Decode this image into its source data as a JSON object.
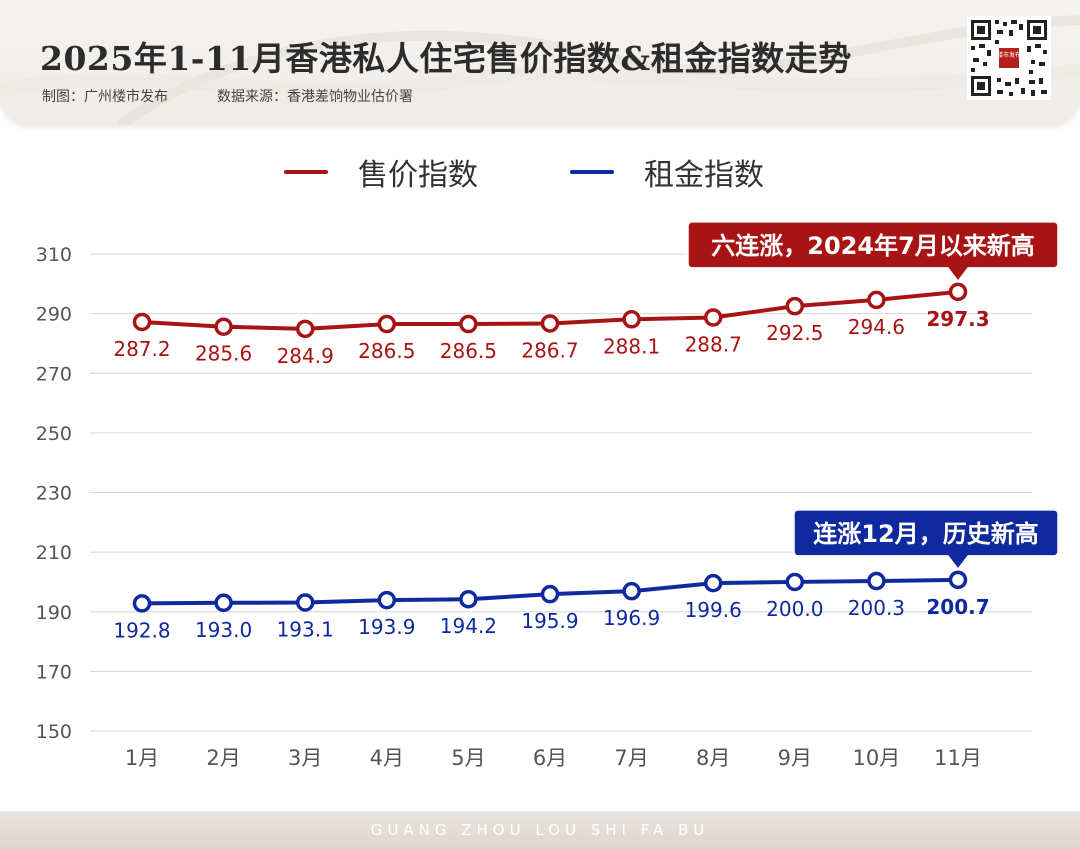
{
  "header": {
    "title": "2025年1-11月香港私人住宅售价指数&租金指数走势",
    "credit_maker": "制图：广州楼市发布",
    "credit_source": "数据来源：香港差饷物业估价署",
    "qr_badge": "楼市发布"
  },
  "footer": {
    "text": "GUANG ZHOU LOU SHI FA BU"
  },
  "colors": {
    "sale": "#a81414",
    "rent": "#0f2a9e",
    "grid": "#d6d6d6",
    "axis_text": "#555555"
  },
  "chart_data": {
    "type": "line",
    "categories": [
      "1月",
      "2月",
      "3月",
      "4月",
      "5月",
      "6月",
      "7月",
      "8月",
      "9月",
      "10月",
      "11月"
    ],
    "series": [
      {
        "name": "售价指数",
        "values": [
          287.2,
          285.6,
          284.9,
          286.5,
          286.5,
          286.7,
          288.1,
          288.7,
          292.5,
          294.6,
          297.3
        ]
      },
      {
        "name": "租金指数",
        "values": [
          192.8,
          193.0,
          193.1,
          193.9,
          194.2,
          195.9,
          196.9,
          199.6,
          200.0,
          200.3,
          200.7
        ]
      }
    ],
    "ylim": [
      150,
      310
    ],
    "yticks": [
      150,
      170,
      190,
      210,
      230,
      250,
      270,
      290,
      310
    ],
    "grid": true,
    "legend_position": "top",
    "annotations": [
      {
        "series": 0,
        "index": 10,
        "text": "六连涨，2024年7月以来新高"
      },
      {
        "series": 1,
        "index": 10,
        "text": "连涨12月，历史新高"
      }
    ]
  }
}
